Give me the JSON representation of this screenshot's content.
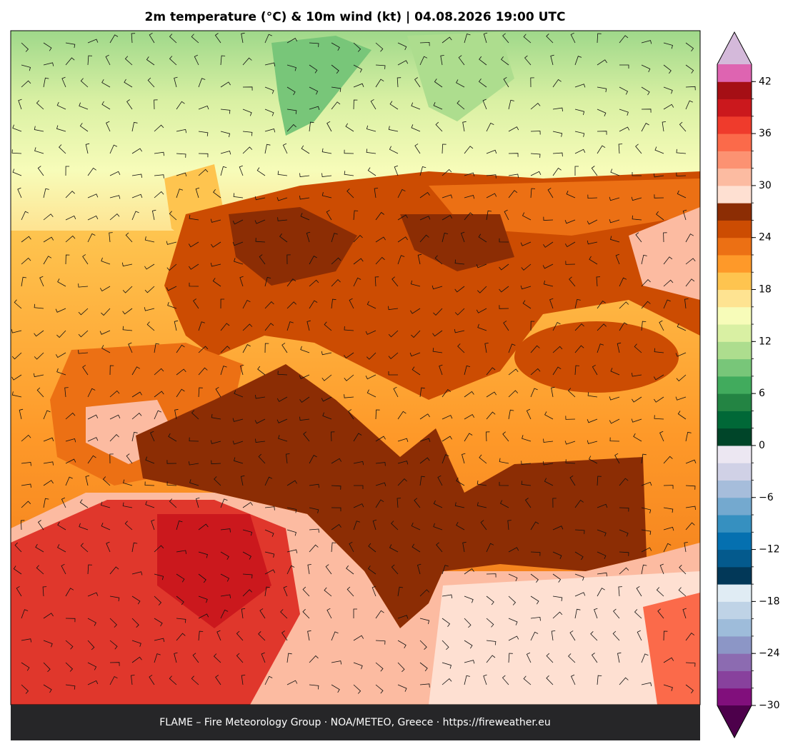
{
  "title": "2m temperature (°C) & 10m wind (kt)  |  04.08.2026 19:00 UTC",
  "footer": "FLAME – Fire Meteorology Group · NOA/METEO, Greece · https://fireweather.eu",
  "colorbar": {
    "lim": [
      -30,
      44
    ],
    "ticks": [
      {
        "value": -30,
        "label": "−30"
      },
      {
        "value": -24,
        "label": "−24"
      },
      {
        "value": -18,
        "label": "−18"
      },
      {
        "value": -12,
        "label": "−12"
      },
      {
        "value": -6,
        "label": "−6"
      },
      0,
      6,
      12,
      18,
      24,
      30,
      36,
      42
    ],
    "colors": [
      "#810f7c",
      "#88419d",
      "#8c6bb1",
      "#8c96c6",
      "#9ebcda",
      "#bfd3e6",
      "#e0ecf4",
      "#023858",
      "#045a8d",
      "#0570b0",
      "#3690c0",
      "#74a9cf",
      "#a6bddb",
      "#d0d1e6",
      "#ece7f2",
      "#004529",
      "#006837",
      "#238443",
      "#41ab5d",
      "#78c679",
      "#addd8e",
      "#d9f0a3",
      "#f7fcb9",
      "#fee391",
      "#fec44f",
      "#fe9929",
      "#ec7014",
      "#cc4c02",
      "#8c2d04",
      "#fee0d2",
      "#fcbba1",
      "#fc9272",
      "#fb6a4a",
      "#ef3b2c",
      "#cb181d",
      "#a50f15",
      "#de64b1"
    ],
    "under_color": "#4d004b",
    "over_color": "#d4b9da"
  }
}
